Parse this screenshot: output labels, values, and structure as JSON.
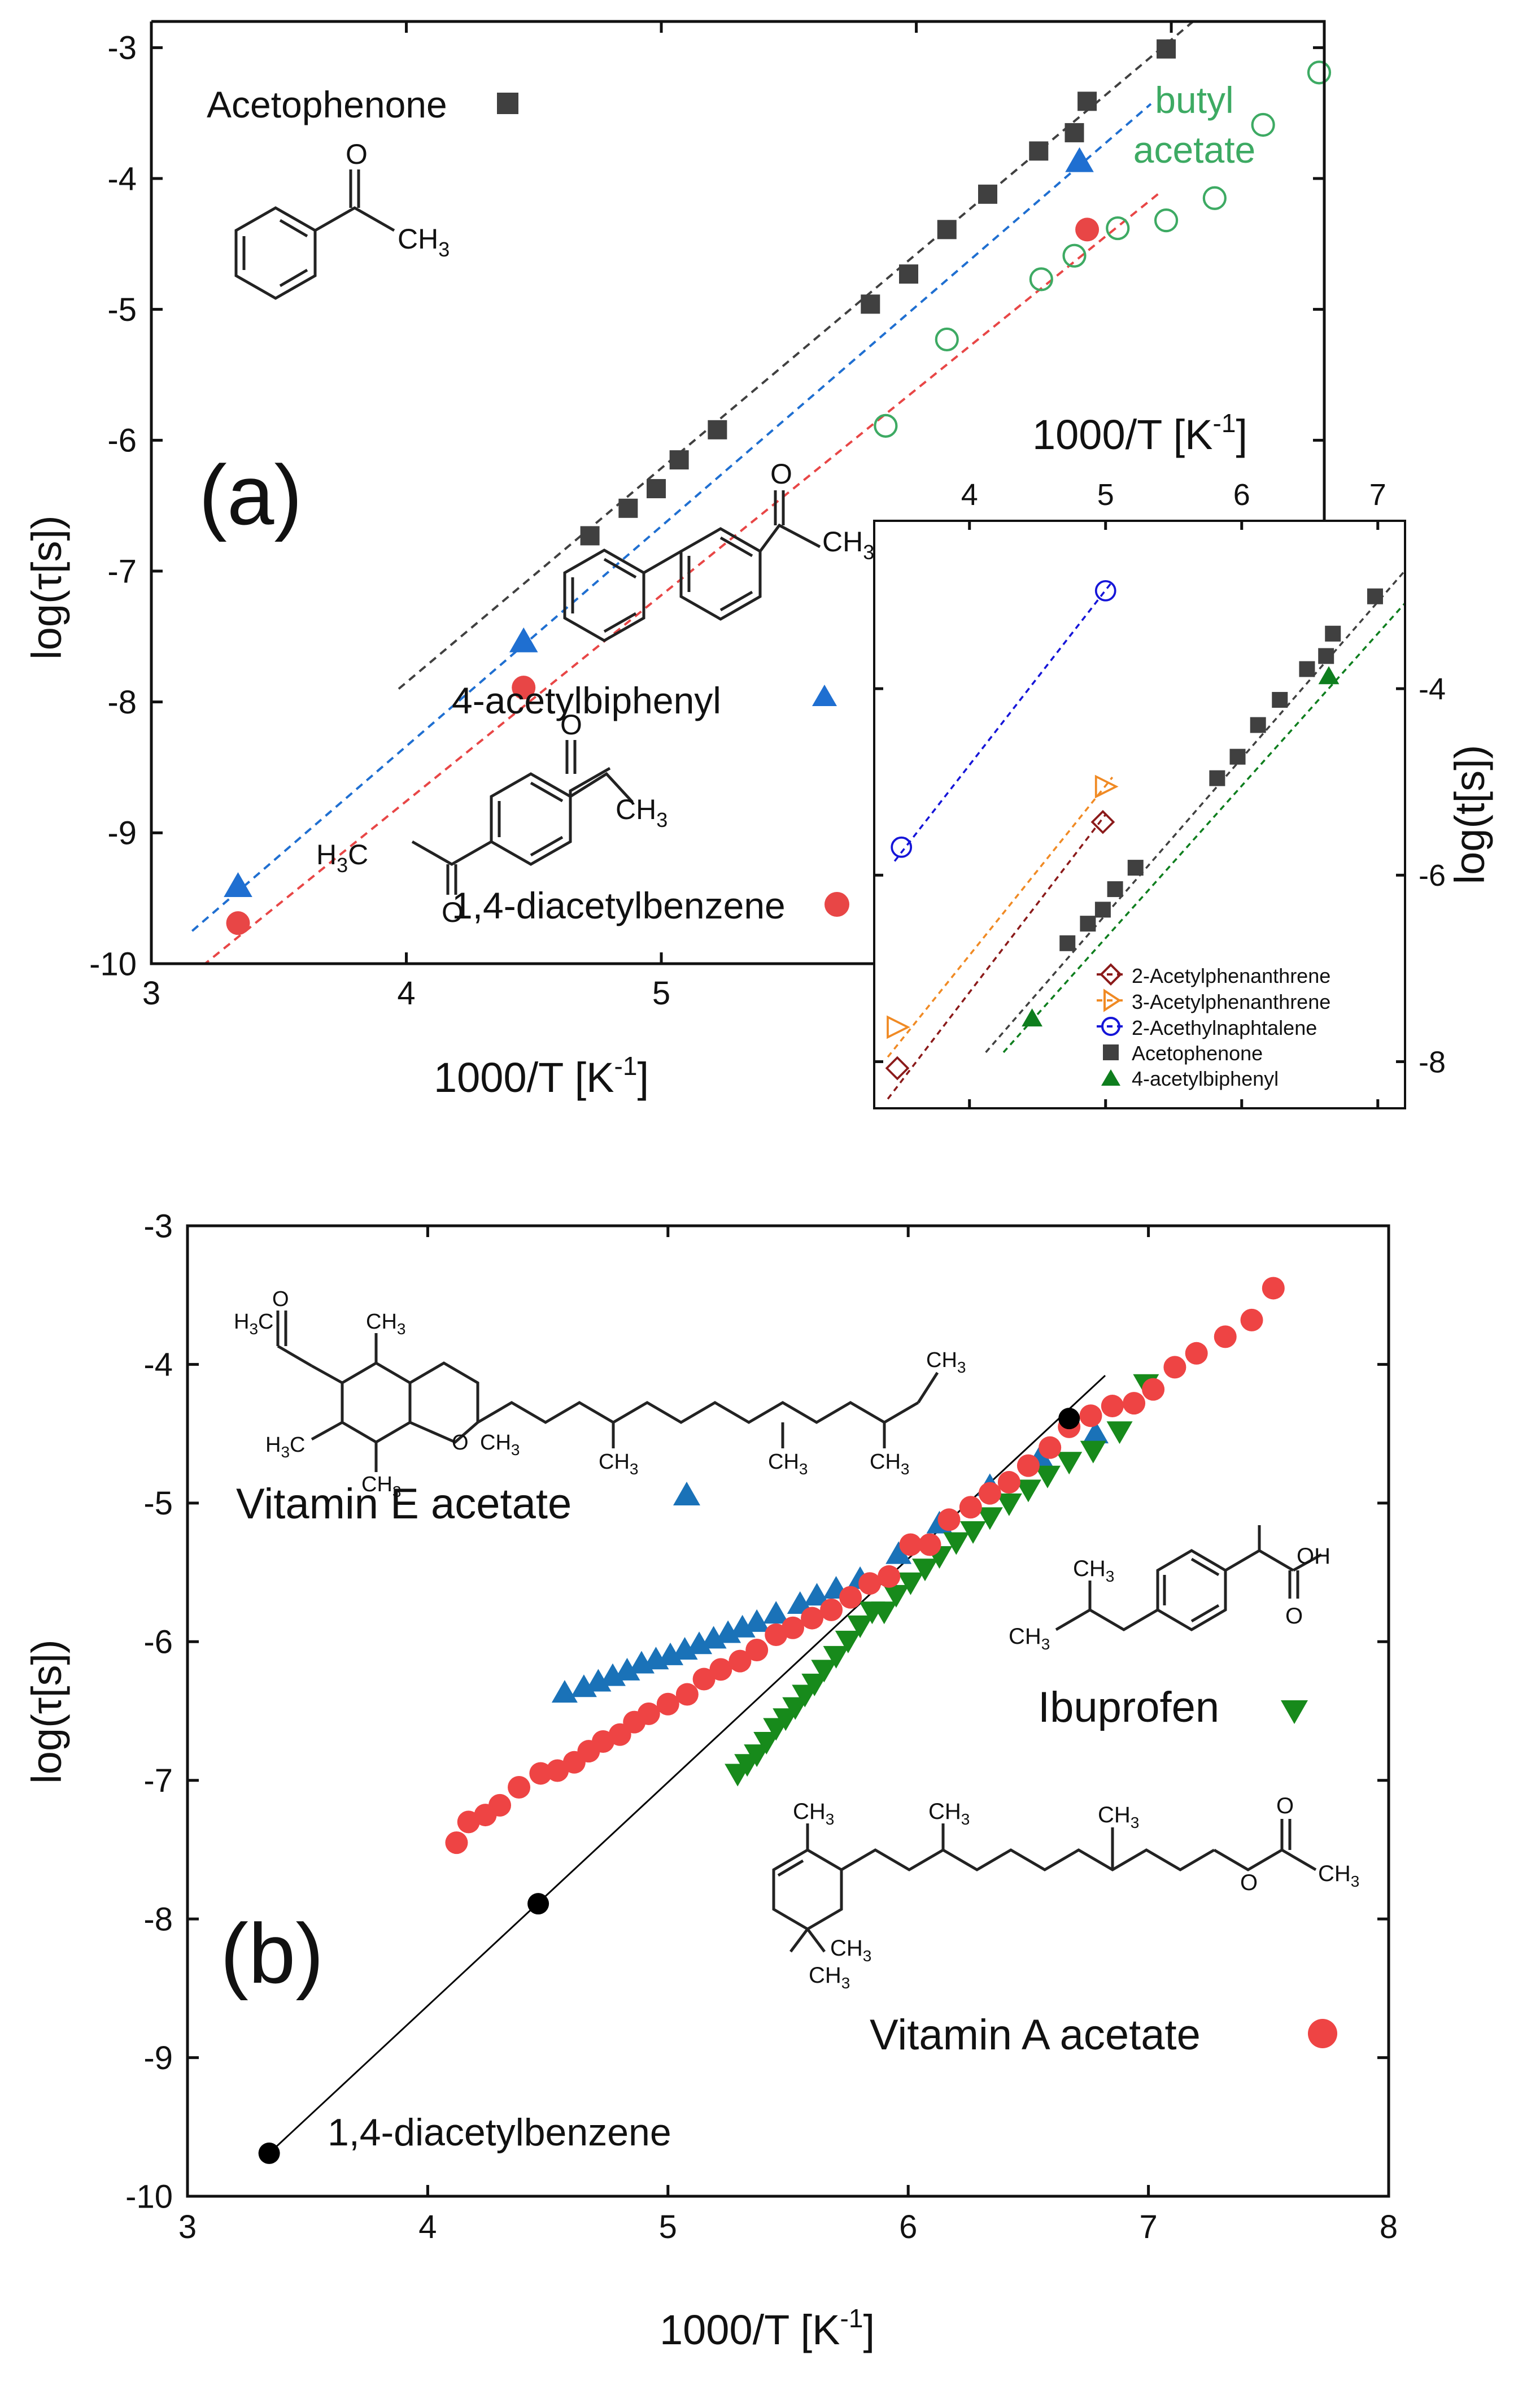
{
  "colors": {
    "acetophenone": "#404040",
    "acetylbiphenyl": "#1f6fd1",
    "diacetylbenzene": "#e84646",
    "butyl_acetate": "#3daa63",
    "acetylphenanthrene2": "#8b1a1a",
    "acetylphenanthrene3": "#f08a24",
    "acetylnaphtalene2": "#1515d8",
    "acetylbiphenyl_green": "#0e7e1e",
    "vitaminE": "#1a72b8",
    "ibuprofen": "#178a1b",
    "vitaminA": "#ee4444",
    "black": "#000000"
  },
  "chart_data": [
    {
      "id": "a-main",
      "type": "scatter",
      "panel_label": "(a)",
      "xlabel": "1000/T [K",
      "xlabel_sup": "-1",
      "xlabel_end": "]",
      "ylabel": "log(τ[s])",
      "xlim": [
        3,
        7.6
      ],
      "ylim": [
        -10,
        -2.8
      ],
      "xticks": [
        "3",
        "4",
        "5",
        "6",
        "7"
      ],
      "yticks": [
        "-10",
        "-9",
        "-8",
        "-7",
        "-6",
        "-5",
        "-4",
        "-3"
      ],
      "series": [
        {
          "name": "Acetophenone",
          "marker": "square",
          "x": [
            4.72,
            4.87,
            4.98,
            5.07,
            5.22,
            5.82,
            5.97,
            6.12,
            6.28,
            6.48,
            6.62,
            6.67,
            6.98
          ],
          "y": [
            -6.73,
            -6.52,
            -6.37,
            -6.15,
            -5.92,
            -4.96,
            -4.73,
            -4.39,
            -4.12,
            -3.79,
            -3.65,
            -3.41,
            -3.01
          ]
        },
        {
          "name": "4-acetylbiphenyl",
          "marker": "triangle",
          "x": [
            3.34,
            4.46,
            6.64
          ],
          "y": [
            -9.41,
            -7.54,
            -3.87
          ]
        },
        {
          "name": "1,4-diacetylbenzene",
          "marker": "circle",
          "x": [
            3.34,
            4.46,
            6.67
          ],
          "y": [
            -9.69,
            -7.89,
            -4.39
          ]
        },
        {
          "name": "butyl acetate",
          "marker": "open-circle",
          "x": [
            5.88,
            6.12,
            6.49,
            6.62,
            6.79,
            6.98,
            7.17,
            7.36,
            7.58
          ],
          "y": [
            -5.89,
            -5.23,
            -4.77,
            -4.59,
            -4.38,
            -4.32,
            -4.15,
            -3.59,
            -3.19
          ]
        }
      ],
      "fit_lines": [
        {
          "series": "Acetophenone",
          "x": [
            3.97,
            7.22
          ],
          "y": [
            -7.9,
            -2.58
          ]
        },
        {
          "series": "4-acetylbiphenyl",
          "x": [
            3.16,
            6.92
          ],
          "y": [
            -9.75,
            -3.43
          ]
        },
        {
          "series": "1,4-diacetylbenzene",
          "x": [
            3.16,
            6.96
          ],
          "y": [
            -10.08,
            -4.1
          ]
        }
      ],
      "annotations": {
        "acetophenone": "Acetophenone",
        "acetylbiphenyl": "4-acetylbiphenyl",
        "diacetylbenzene": "1,4-diacetylbenzene",
        "butyl_line1": "butyl",
        "butyl_line2": "acetate"
      }
    },
    {
      "id": "a-inset",
      "type": "scatter",
      "xlabel": "1000/T [K",
      "xlabel_sup": "-1",
      "xlabel_end": "]",
      "ylabel": "log(t[s])",
      "xlim": [
        3.3,
        7.2
      ],
      "ylim": [
        -8.5,
        -2.2
      ],
      "xticks": [
        "4",
        "5",
        "6",
        "7"
      ],
      "yticks": [
        "-8",
        "-6",
        "-4"
      ],
      "series": [
        {
          "name": "2-Acetylphenanthrene",
          "marker": "open-diamond",
          "x": [
            3.47,
            4.98
          ],
          "y": [
            -8.07,
            -5.43
          ]
        },
        {
          "name": "3-Acetylphenanthrene",
          "marker": "open-triangle-right",
          "x": [
            3.47,
            5.0
          ],
          "y": [
            -7.63,
            -5.05
          ]
        },
        {
          "name": "2-Acethylnaphtalene",
          "marker": "open-circle",
          "x": [
            3.5,
            5.0
          ],
          "y": [
            -5.7,
            -2.95
          ]
        },
        {
          "name": "Acetophenone",
          "marker": "square",
          "x": [
            4.72,
            4.87,
            4.98,
            5.07,
            5.22,
            5.82,
            5.97,
            6.12,
            6.28,
            6.48,
            6.62,
            6.67,
            6.98
          ],
          "y": [
            -6.73,
            -6.52,
            -6.37,
            -6.15,
            -5.92,
            -4.96,
            -4.73,
            -4.39,
            -4.12,
            -3.79,
            -3.65,
            -3.41,
            -3.01
          ]
        },
        {
          "name": "4-acetylbiphenyl",
          "marker": "triangle",
          "x": [
            4.46,
            6.64
          ],
          "y": [
            -7.54,
            -3.87
          ]
        }
      ],
      "fit_lines": [
        {
          "series": "2-Acetylphenanthrene",
          "x": [
            3.4,
            5.0
          ],
          "y": [
            -8.4,
            -5.35
          ]
        },
        {
          "series": "3-Acetylphenanthrene",
          "x": [
            3.4,
            5.05
          ],
          "y": [
            -7.95,
            -4.95
          ]
        },
        {
          "series": "2-Acethylnaphtalene",
          "x": [
            3.45,
            5.05
          ],
          "y": [
            -5.85,
            -2.85
          ]
        },
        {
          "series": "Acetophenone",
          "x": [
            4.12,
            7.22
          ],
          "y": [
            -7.9,
            -2.7
          ]
        },
        {
          "series": "4-acetylbiphenyl",
          "x": [
            4.25,
            7.22
          ],
          "y": [
            -7.9,
            -3.05
          ]
        }
      ]
    },
    {
      "id": "b",
      "type": "scatter",
      "panel_label": "(b)",
      "xlabel": "1000/T [K",
      "xlabel_sup": "-1",
      "xlabel_end": "]",
      "ylabel": "log(τ[s])",
      "xlim": [
        3,
        8
      ],
      "ylim": [
        -10,
        -3
      ],
      "xticks": [
        "3",
        "4",
        "5",
        "6",
        "7",
        "8"
      ],
      "yticks": [
        "-10",
        "-9",
        "-8",
        "-7",
        "-6",
        "-5",
        "-4",
        "-3"
      ],
      "series": [
        {
          "name": "Vitamin E acetate",
          "marker": "triangle",
          "x": [
            4.57,
            4.65,
            4.71,
            4.77,
            4.83,
            4.89,
            4.95,
            5.01,
            5.07,
            5.13,
            5.19,
            5.25,
            5.31,
            5.37,
            5.45,
            5.55,
            5.62,
            5.7,
            5.8,
            5.96,
            6.13,
            6.34,
            6.55,
            6.78
          ],
          "y": [
            -6.37,
            -6.33,
            -6.29,
            -6.25,
            -6.21,
            -6.16,
            -6.13,
            -6.1,
            -6.06,
            -6.02,
            -5.98,
            -5.94,
            -5.9,
            -5.86,
            -5.8,
            -5.73,
            -5.67,
            -5.62,
            -5.55,
            -5.37,
            -5.15,
            -4.88,
            -4.67,
            -4.5
          ]
        },
        {
          "name": "Ibuprofen",
          "marker": "triangle-down",
          "x": [
            5.29,
            5.33,
            5.37,
            5.41,
            5.45,
            5.49,
            5.53,
            5.57,
            5.61,
            5.65,
            5.7,
            5.75,
            5.8,
            5.85,
            5.9,
            5.95,
            6.01,
            6.07,
            6.13,
            6.2,
            6.27,
            6.34,
            6.42,
            6.5,
            6.58,
            6.67,
            6.77,
            6.88,
            6.99
          ],
          "y": [
            -6.95,
            -6.88,
            -6.81,
            -6.72,
            -6.62,
            -6.55,
            -6.47,
            -6.38,
            -6.3,
            -6.2,
            -6.1,
            -5.99,
            -5.88,
            -5.78,
            -5.78,
            -5.66,
            -5.57,
            -5.47,
            -5.38,
            -5.28,
            -5.2,
            -5.1,
            -5.0,
            -4.9,
            -4.8,
            -4.7,
            -4.62,
            -4.48,
            -4.14
          ]
        },
        {
          "name": "Vitamin A acetate",
          "marker": "circle",
          "x": [
            4.12,
            4.17,
            4.24,
            4.3,
            4.38,
            4.47,
            4.54,
            4.61,
            4.67,
            4.73,
            4.8,
            4.86,
            4.92,
            5.0,
            5.08,
            5.15,
            5.22,
            5.3,
            5.37,
            5.45,
            5.52,
            5.6,
            5.68,
            5.76,
            5.84,
            5.92,
            6.01,
            6.09,
            6.17,
            6.26,
            6.34,
            6.42,
            6.5,
            6.59,
            6.67,
            6.76,
            6.85,
            6.94,
            7.02,
            7.11,
            7.2,
            7.32,
            7.43,
            7.52
          ],
          "y": [
            -7.45,
            -7.3,
            -7.25,
            -7.18,
            -7.05,
            -6.95,
            -6.93,
            -6.87,
            -6.79,
            -6.72,
            -6.67,
            -6.58,
            -6.52,
            -6.45,
            -6.38,
            -6.27,
            -6.2,
            -6.14,
            -6.06,
            -5.95,
            -5.9,
            -5.83,
            -5.77,
            -5.68,
            -5.58,
            -5.53,
            -5.3,
            -5.3,
            -5.12,
            -5.03,
            -4.93,
            -4.85,
            -4.73,
            -4.6,
            -4.45,
            -4.37,
            -4.3,
            -4.28,
            -4.18,
            -4.02,
            -3.92,
            -3.8,
            -3.68,
            -3.45
          ]
        },
        {
          "name": "1,4-diacetylbenzene",
          "marker": "circle",
          "x": [
            3.34,
            4.46,
            6.67
          ],
          "y": [
            -9.69,
            -7.89,
            -4.39
          ]
        }
      ],
      "fit_lines": [
        {
          "series": "1,4-diacetylbenzene",
          "x": [
            3.34,
            6.82
          ],
          "y": [
            -9.69,
            -4.08
          ]
        }
      ],
      "annotations": {
        "vitaminE": "Vitamin E acetate",
        "ibuprofen": "Ibuprofen",
        "vitaminA": "Vitamin A acetate",
        "diacetylbenzene": "1,4-diacetylbenzene"
      }
    }
  ],
  "legend": {
    "inset": [
      "2-Acetylphenanthrene",
      "3-Acetylphenanthrene",
      "2-Acethylnaphtalene",
      "Acetophenone",
      "4-acetylbiphenyl"
    ]
  },
  "structures": {
    "O": "O",
    "OH": "OH",
    "CH3": "CH",
    "H3C": "H",
    "sub3": "3",
    "C": "C"
  }
}
